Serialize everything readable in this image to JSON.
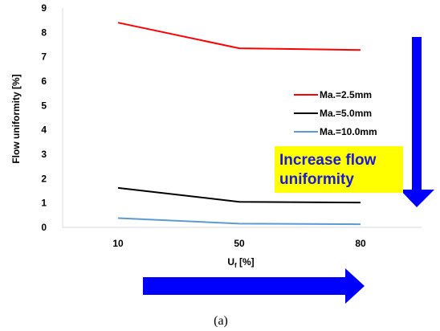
{
  "chart_data": {
    "type": "line",
    "categories": [
      "10",
      "50",
      "80"
    ],
    "series": [
      {
        "name": "Ma.=2.5mm",
        "values": [
          8.4,
          7.35,
          7.28
        ],
        "color": "#ff0000"
      },
      {
        "name": "Ma.=5.0mm",
        "values": [
          1.62,
          1.05,
          1.02
        ],
        "color": "#000000"
      },
      {
        "name": "Ma.=10.0mm",
        "values": [
          0.38,
          0.15,
          0.13
        ],
        "color": "#5b9bd5"
      }
    ],
    "xlabel_main": "U",
    "xlabel_sub": "f",
    "xlabel_unit": " [%]",
    "ylabel": "Flow uniformity  [%]",
    "ylim": [
      0,
      9
    ],
    "yticks": [
      "0",
      "1",
      "2",
      "3",
      "4",
      "5",
      "6",
      "7",
      "8",
      "9"
    ],
    "grid": false,
    "legend_position": "right"
  },
  "annotation": {
    "text_line1": "Increase flow",
    "text_line2": "uniformity",
    "box_color": "#ffff00",
    "text_color": "#1a1ad6",
    "arrow_color": "#0000ff"
  },
  "caption": "(a)"
}
